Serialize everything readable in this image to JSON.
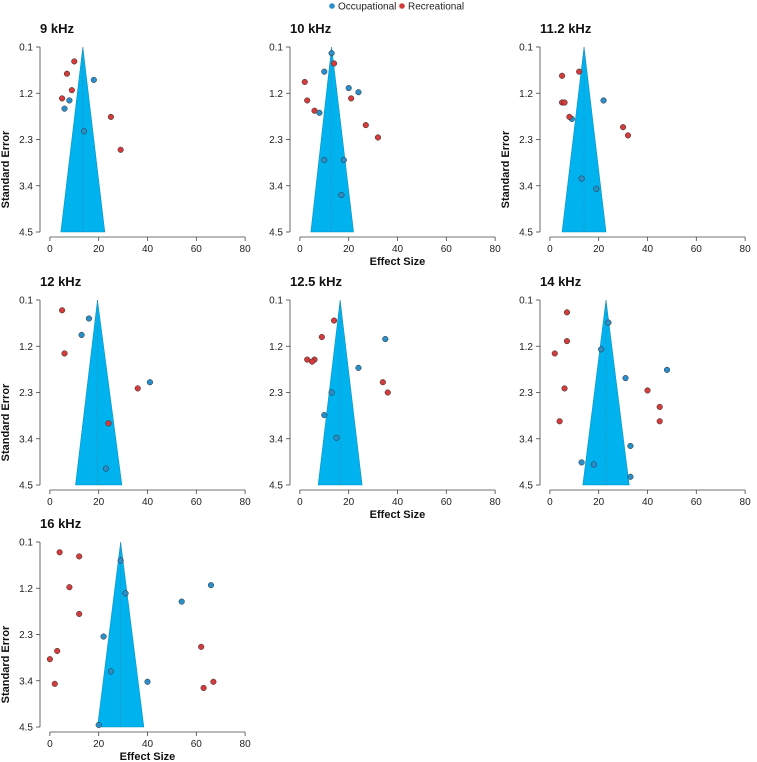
{
  "colors": {
    "occupational": "#2a8fc8",
    "recreational": "#d23c3c",
    "funnel": "#00b3ef",
    "axis": "#444444"
  },
  "legend": {
    "items": [
      {
        "name": "Occupational",
        "color": "#2a8fc8"
      },
      {
        "name": "Recreational",
        "color": "#d23c3c"
      }
    ]
  },
  "chart_data": [
    {
      "type": "scatter",
      "title": "9 kHz",
      "xlabel": "",
      "ylabel": "Standard Error",
      "xlim": [
        -2,
        82
      ],
      "ylim": [
        0,
        4.5
      ],
      "xticks": [
        "0",
        "20",
        "40",
        "60",
        "80"
      ],
      "yticks": [
        "0.1",
        "1.2",
        "2.3",
        "3.4",
        "4.5"
      ],
      "funnel": {
        "center": 13.5,
        "apex_se": 0,
        "base_left": 4.5,
        "base_right": 22.5
      },
      "series": [
        {
          "name": "Occupational",
          "points": [
            [
              18,
              0.8
            ],
            [
              8,
              1.3
            ],
            [
              6,
              1.5
            ],
            [
              14,
              2.05
            ]
          ]
        },
        {
          "name": "Recreational",
          "points": [
            [
              10,
              0.35
            ],
            [
              7,
              0.65
            ],
            [
              9,
              1.05
            ],
            [
              5,
              1.25
            ],
            [
              25,
              1.7
            ],
            [
              29,
              2.5
            ]
          ]
        }
      ]
    },
    {
      "type": "scatter",
      "title": "10 kHz",
      "xlabel": "Effect Size",
      "ylabel": "",
      "xlim": [
        -2,
        82
      ],
      "ylim": [
        0,
        4.5
      ],
      "xticks": [
        "0",
        "20",
        "40",
        "60",
        "80"
      ],
      "yticks": [
        "0.1",
        "1.2",
        "2.3",
        "3.4",
        "4.5"
      ],
      "funnel": {
        "center": 13,
        "apex_se": 0,
        "base_left": 4.5,
        "base_right": 22
      },
      "series": [
        {
          "name": "Occupational",
          "points": [
            [
              13,
              0.15
            ],
            [
              10,
              0.6
            ],
            [
              20,
              1.0
            ],
            [
              24,
              1.1
            ],
            [
              8,
              1.6
            ],
            [
              10,
              2.75
            ],
            [
              18,
              2.75
            ],
            [
              17,
              3.6
            ]
          ]
        },
        {
          "name": "Recreational",
          "points": [
            [
              14,
              0.4
            ],
            [
              2,
              0.85
            ],
            [
              3,
              1.3
            ],
            [
              21,
              1.25
            ],
            [
              6,
              1.55
            ],
            [
              27,
              1.9
            ],
            [
              32,
              2.2
            ]
          ]
        }
      ]
    },
    {
      "type": "scatter",
      "title": "11.2 kHz",
      "xlabel": "",
      "ylabel": "Standard Error",
      "xlim": [
        -2,
        82
      ],
      "ylim": [
        0,
        4.5
      ],
      "xticks": [
        "0",
        "20",
        "40",
        "60",
        "80"
      ],
      "yticks": [
        "0.1",
        "1.2",
        "2.3",
        "3.4",
        "4.5"
      ],
      "funnel": {
        "center": 14,
        "apex_se": 0,
        "base_left": 5,
        "base_right": 23
      },
      "series": [
        {
          "name": "Occupational",
          "points": [
            [
              22,
              1.3
            ],
            [
              9,
              1.75
            ],
            [
              13,
              3.2
            ],
            [
              19,
              3.45
            ]
          ]
        },
        {
          "name": "Recreational",
          "points": [
            [
              12,
              0.6
            ],
            [
              5,
              0.7
            ],
            [
              5,
              1.35
            ],
            [
              6,
              1.35
            ],
            [
              8,
              1.7
            ],
            [
              30,
              1.95
            ],
            [
              32,
              2.15
            ]
          ]
        }
      ]
    },
    {
      "type": "scatter",
      "title": "12 kHz",
      "xlabel": "",
      "ylabel": "Standard Error",
      "xlim": [
        -2,
        82
      ],
      "ylim": [
        0,
        4.5
      ],
      "xticks": [
        "0",
        "20",
        "40",
        "60",
        "80"
      ],
      "yticks": [
        "0.1",
        "1.2",
        "2.3",
        "3.4",
        "4.5"
      ],
      "funnel": {
        "center": 19.5,
        "apex_se": 0,
        "base_left": 10.5,
        "base_right": 29.5
      },
      "series": [
        {
          "name": "Occupational",
          "points": [
            [
              16,
              0.45
            ],
            [
              13,
              0.85
            ],
            [
              41,
              2.0
            ],
            [
              23,
              4.1
            ]
          ]
        },
        {
          "name": "Recreational",
          "points": [
            [
              5,
              0.25
            ],
            [
              6,
              1.3
            ],
            [
              36,
              2.15
            ],
            [
              24,
              3.0
            ]
          ]
        }
      ]
    },
    {
      "type": "scatter",
      "title": "12.5 kHz",
      "xlabel": "Effect Size",
      "ylabel": "",
      "xlim": [
        -2,
        82
      ],
      "ylim": [
        0,
        4.5
      ],
      "xticks": [
        "0",
        "20",
        "40",
        "60",
        "80"
      ],
      "yticks": [
        "0.1",
        "1.2",
        "2.3",
        "3.4",
        "4.5"
      ],
      "funnel": {
        "center": 16.5,
        "apex_se": 0,
        "base_left": 7.5,
        "base_right": 25.5
      },
      "series": [
        {
          "name": "Occupational",
          "points": [
            [
              35,
              0.95
            ],
            [
              24,
              1.65
            ],
            [
              13,
              2.25
            ],
            [
              10,
              2.8
            ],
            [
              15,
              3.35
            ]
          ]
        },
        {
          "name": "Recreational",
          "points": [
            [
              14,
              0.5
            ],
            [
              9,
              0.9
            ],
            [
              3,
              1.45
            ],
            [
              6,
              1.45
            ],
            [
              5,
              1.5
            ],
            [
              34,
              2.0
            ],
            [
              36,
              2.25
            ]
          ]
        }
      ]
    },
    {
      "type": "scatter",
      "title": "14 kHz",
      "xlabel": "",
      "ylabel": "",
      "xlim": [
        -2,
        82
      ],
      "ylim": [
        0,
        4.5
      ],
      "xticks": [
        "0",
        "20",
        "40",
        "60",
        "80"
      ],
      "yticks": [
        "0.1",
        "1.2",
        "2.3",
        "3.4",
        "4.5"
      ],
      "funnel": {
        "center": 23,
        "apex_se": 0,
        "base_left": 13.5,
        "base_right": 32.5
      },
      "series": [
        {
          "name": "Occupational",
          "points": [
            [
              24,
              0.55
            ],
            [
              21,
              1.2
            ],
            [
              48,
              1.7
            ],
            [
              31,
              1.9
            ],
            [
              13,
              3.95
            ],
            [
              18,
              4.0
            ],
            [
              33,
              3.55
            ],
            [
              33,
              4.3
            ]
          ]
        },
        {
          "name": "Recreational",
          "points": [
            [
              7,
              0.3
            ],
            [
              7,
              1.0
            ],
            [
              2,
              1.3
            ],
            [
              6,
              2.15
            ],
            [
              40,
              2.2
            ],
            [
              45,
              2.6
            ],
            [
              4,
              2.95
            ],
            [
              45,
              2.95
            ]
          ]
        }
      ]
    },
    {
      "type": "scatter",
      "title": "16 kHz",
      "xlabel": "Effect Size",
      "ylabel": "Standard Error",
      "xlim": [
        -2,
        82
      ],
      "ylim": [
        0,
        4.5
      ],
      "xticks": [
        "0",
        "20",
        "40",
        "60",
        "80"
      ],
      "yticks": [
        "0.1",
        "1.2",
        "2.3",
        "3.4",
        "4.5"
      ],
      "funnel": {
        "center": 29,
        "apex_se": 0,
        "base_left": 19.5,
        "base_right": 38.5
      },
      "series": [
        {
          "name": "Occupational",
          "points": [
            [
              29,
              0.45
            ],
            [
              66,
              1.05
            ],
            [
              31,
              1.25
            ],
            [
              54,
              1.45
            ],
            [
              22,
              2.3
            ],
            [
              25,
              3.15
            ],
            [
              40,
              3.4
            ],
            [
              20,
              4.45
            ]
          ]
        },
        {
          "name": "Recreational",
          "points": [
            [
              4,
              0.25
            ],
            [
              12,
              0.35
            ],
            [
              8,
              1.1
            ],
            [
              12,
              1.75
            ],
            [
              3,
              2.65
            ],
            [
              0,
              2.85
            ],
            [
              62,
              2.55
            ],
            [
              2,
              3.45
            ],
            [
              63,
              3.55
            ],
            [
              67,
              3.4
            ]
          ]
        }
      ]
    }
  ]
}
